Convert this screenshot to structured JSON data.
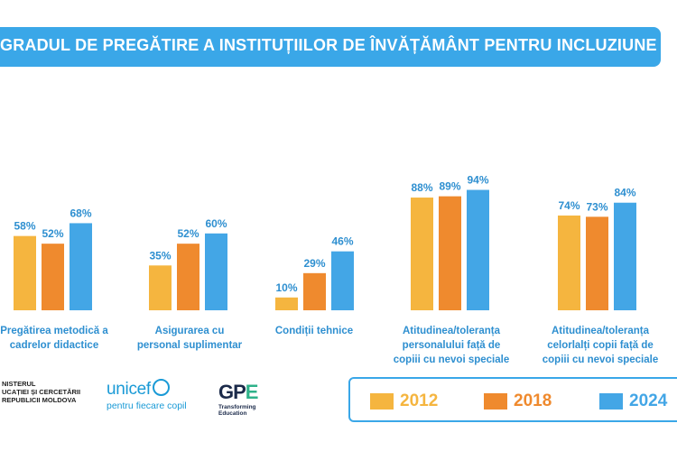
{
  "chart_data": {
    "type": "bar",
    "title": "GRADUL DE PREGĂTIRE A INSTITUȚIILOR DE ÎNVĂȚĂMÂNT PENTRU INCLUZIUNE",
    "categories": [
      [
        "Pregătirea metodică a",
        "cadrelor didactice"
      ],
      [
        "Asigurarea cu",
        "personal suplimentar"
      ],
      [
        "Condiții tehnice"
      ],
      [
        "Atitudinea/toleranța",
        "personalului față de",
        "copiii cu nevoi speciale"
      ],
      [
        "Atitudinea/toleranța",
        "celorlalți copii față de",
        "copiii cu nevoi speciale"
      ]
    ],
    "series": [
      {
        "name": "2012",
        "color": "#f5b53f",
        "values": [
          58,
          35,
          10,
          88,
          74
        ],
        "labels": [
          "58%",
          "35%",
          "10%",
          "88%",
          "74%"
        ]
      },
      {
        "name": "2018",
        "color": "#ef8a2e",
        "values": [
          52,
          52,
          29,
          89,
          73
        ],
        "labels": [
          "52%",
          "52%",
          "29%",
          "89%",
          "73%"
        ]
      },
      {
        "name": "2024",
        "color": "#43a6e6",
        "values": [
          68,
          60,
          46,
          94,
          84
        ],
        "labels": [
          "68%",
          "60%",
          "46%",
          "94%",
          "84%"
        ]
      }
    ],
    "ylim": [
      0,
      100
    ],
    "grid": false,
    "legend": "bottom-right",
    "data_label_color": "#2e8fd0"
  },
  "logos": {
    "ministry": [
      "NISTERUL",
      "UCAȚIEI ȘI CERCETĂRII",
      "REPUBLICII MOLDOVA"
    ],
    "unicef": {
      "name": "unicef",
      "tagline": "pentru fiecare copil"
    },
    "gpe": {
      "mark_left": "GP",
      "mark_right": "E",
      "tagline": [
        "Transforming",
        "Education"
      ]
    }
  }
}
